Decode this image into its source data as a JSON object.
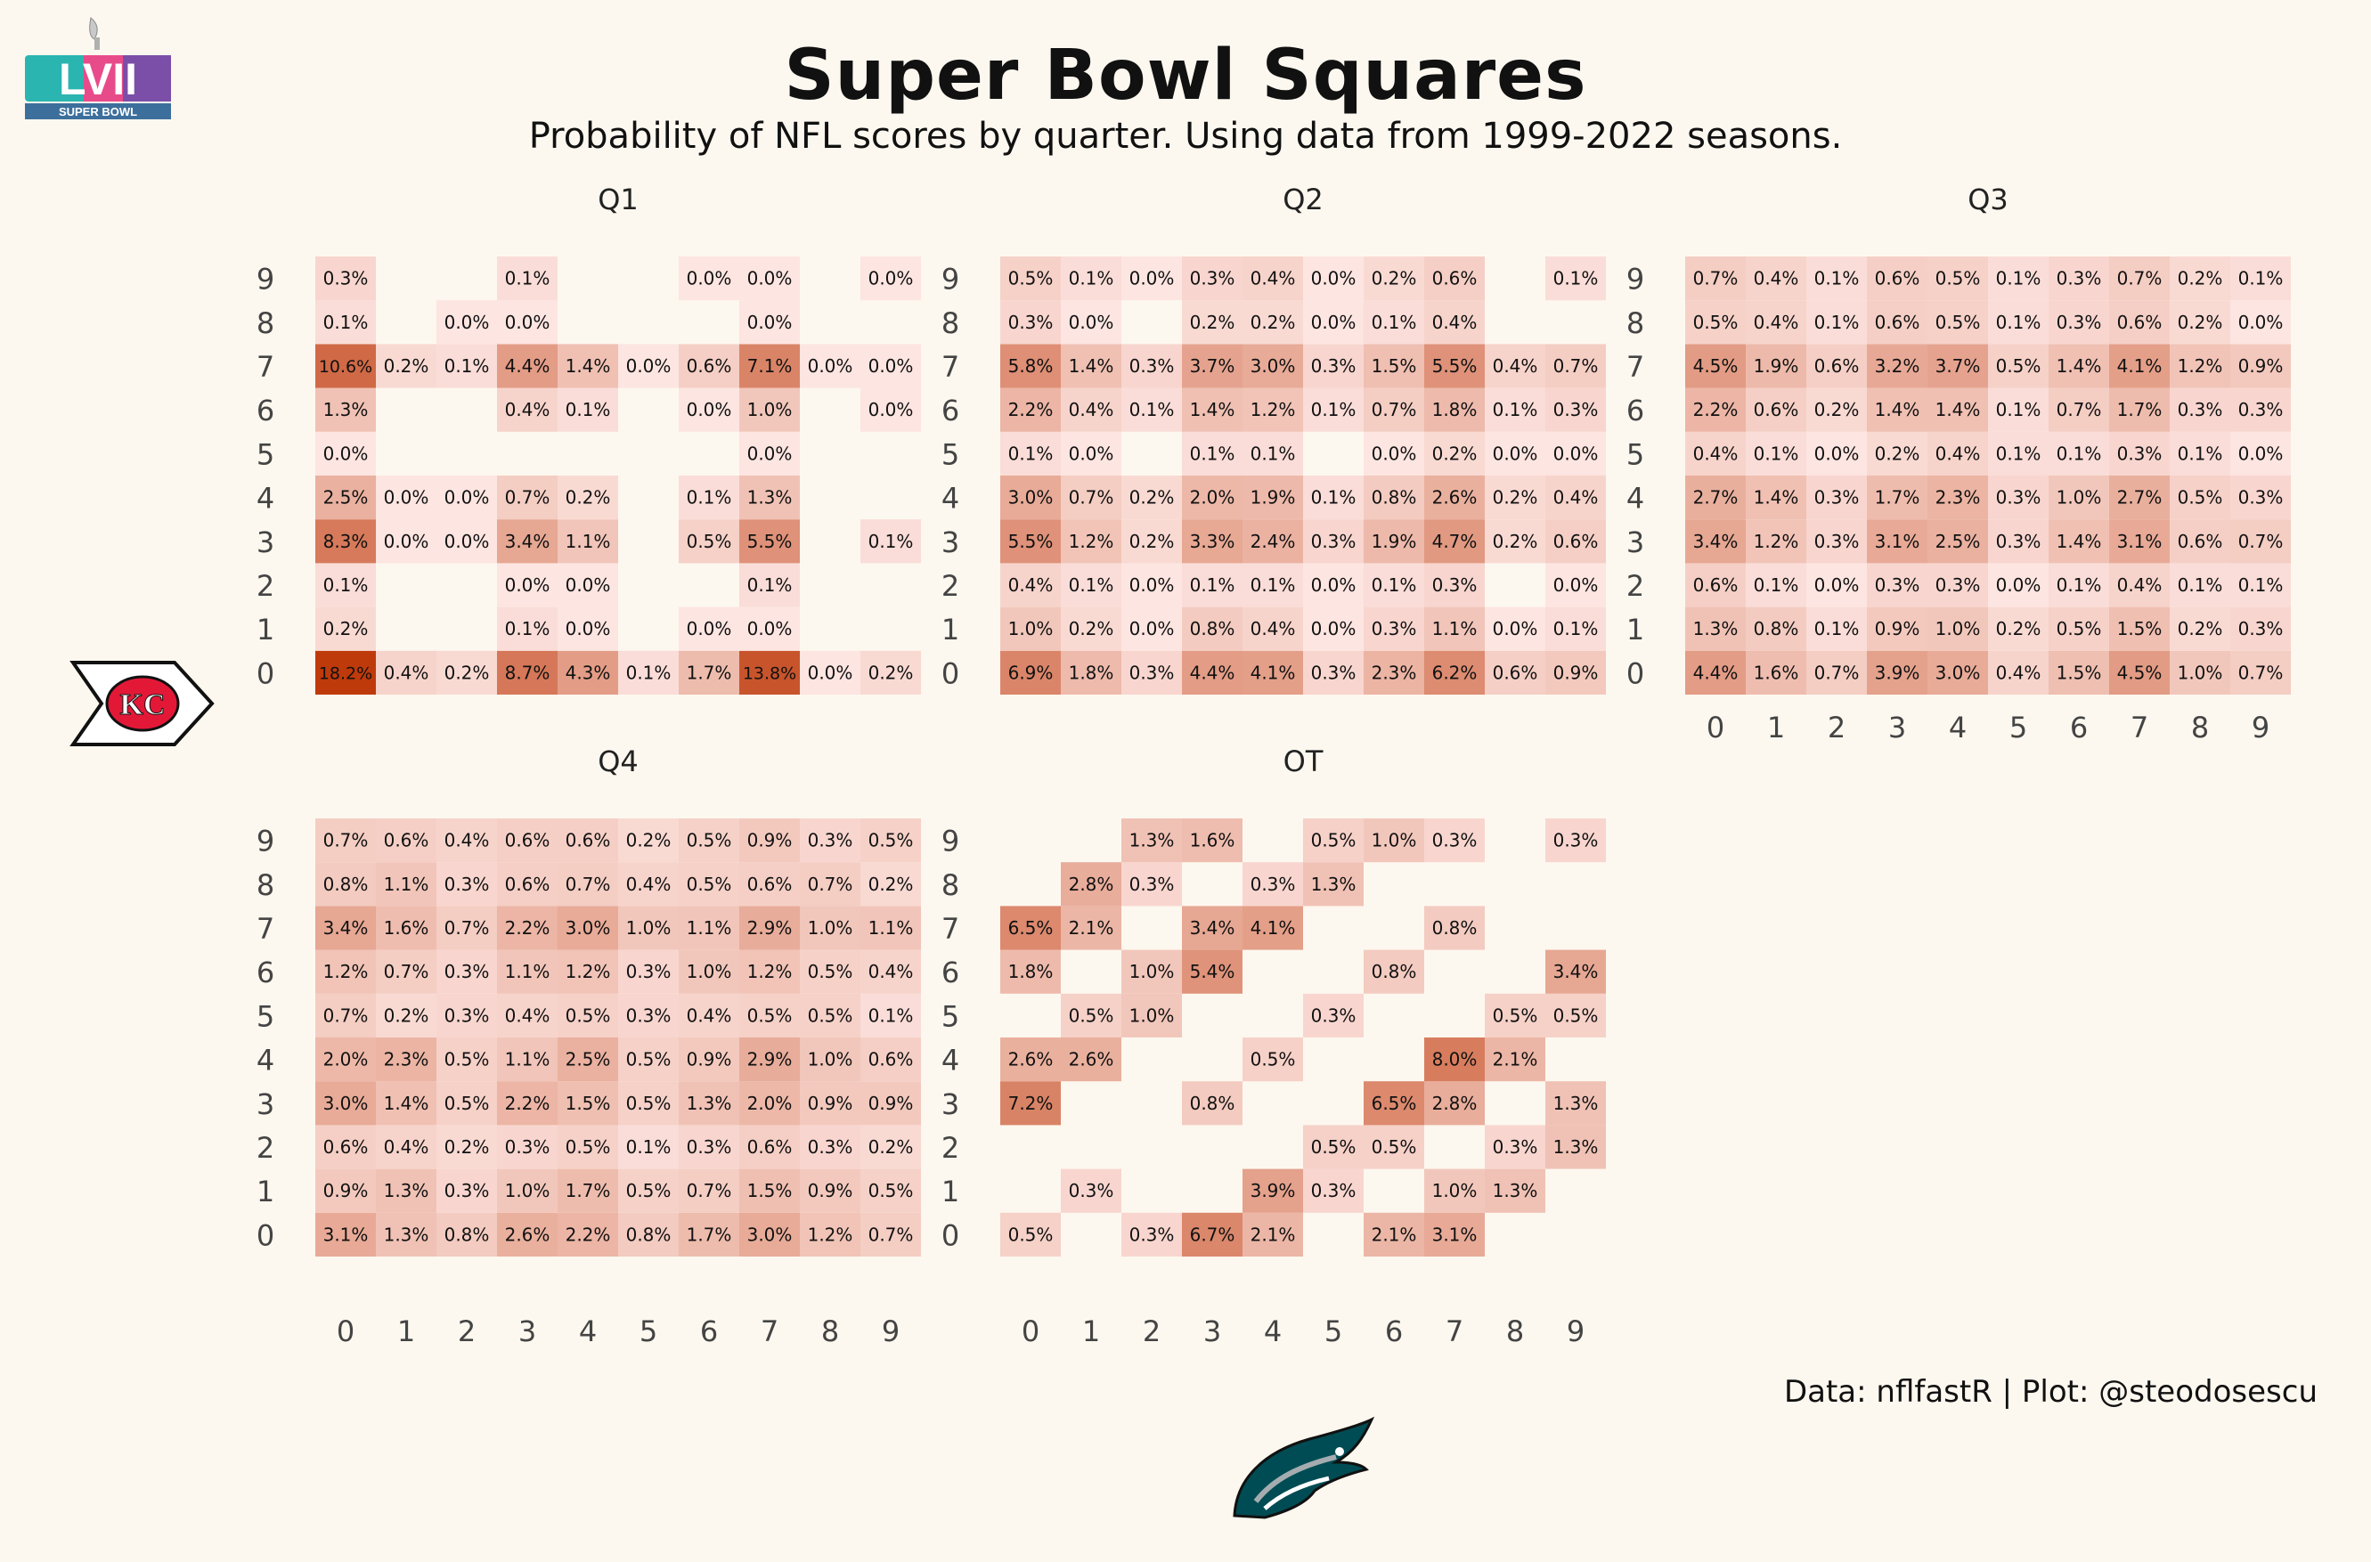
{
  "title": "Super Bowl Squares",
  "subtitle": "Probability of NFL scores by quarter. Using data from 1999-2022 seasons.",
  "caption": "Data: nflfastR | Plot: @steodosescu",
  "logos": {
    "super_bowl": {
      "text": "SUPER BOWL",
      "numeral": "LVII"
    },
    "chiefs": {
      "text": "KC"
    },
    "eagles": {
      "name": "eagles-logo"
    }
  },
  "colors": {
    "background": "#fdf8ef",
    "low": "#fde5e1",
    "high": "#bf3a0b",
    "chiefs_red": "#e31837",
    "chiefs_gold": "#ffb81c",
    "eagles_green": "#004c54",
    "lvii_teal": "#2bb5b0",
    "lvii_pink": "#e84b8a"
  },
  "chart_data": [
    {
      "type": "heatmap",
      "panel": "Q1",
      "x": [
        0,
        1,
        2,
        3,
        4,
        5,
        6,
        7,
        8,
        9
      ],
      "y": [
        0,
        1,
        2,
        3,
        4,
        5,
        6,
        7,
        8,
        9
      ],
      "rows": {
        "9": [
          "0.3%",
          "",
          "",
          "0.1%",
          "",
          "",
          "0.0%",
          "0.0%",
          "",
          "0.0%"
        ],
        "8": [
          "0.1%",
          "",
          "0.0%",
          "0.0%",
          "",
          "",
          "",
          "0.0%",
          "",
          ""
        ],
        "7": [
          "10.6%",
          "0.2%",
          "0.1%",
          "4.4%",
          "1.4%",
          "0.0%",
          "0.6%",
          "7.1%",
          "0.0%",
          "0.0%"
        ],
        "6": [
          "1.3%",
          "",
          "",
          "0.4%",
          "0.1%",
          "",
          "0.0%",
          "1.0%",
          "",
          "0.0%"
        ],
        "5": [
          "0.0%",
          "",
          "",
          "",
          "",
          "",
          "",
          "0.0%",
          "",
          ""
        ],
        "4": [
          "2.5%",
          "0.0%",
          "0.0%",
          "0.7%",
          "0.2%",
          "",
          "0.1%",
          "1.3%",
          "",
          ""
        ],
        "3": [
          "8.3%",
          "0.0%",
          "0.0%",
          "3.4%",
          "1.1%",
          "",
          "0.5%",
          "5.5%",
          "",
          "0.1%"
        ],
        "2": [
          "0.1%",
          "",
          "",
          "0.0%",
          "0.0%",
          "",
          "",
          "0.1%",
          "",
          ""
        ],
        "1": [
          "0.2%",
          "",
          "",
          "0.1%",
          "0.0%",
          "",
          "0.0%",
          "0.0%",
          "",
          ""
        ],
        "0": [
          "18.2%",
          "0.4%",
          "0.2%",
          "8.7%",
          "4.3%",
          "0.1%",
          "1.7%",
          "13.8%",
          "0.0%",
          "0.2%"
        ]
      }
    },
    {
      "type": "heatmap",
      "panel": "Q2",
      "x": [
        0,
        1,
        2,
        3,
        4,
        5,
        6,
        7,
        8,
        9
      ],
      "y": [
        0,
        1,
        2,
        3,
        4,
        5,
        6,
        7,
        8,
        9
      ],
      "rows": {
        "9": [
          "0.5%",
          "0.1%",
          "0.0%",
          "0.3%",
          "0.4%",
          "0.0%",
          "0.2%",
          "0.6%",
          "",
          "0.1%"
        ],
        "8": [
          "0.3%",
          "0.0%",
          "",
          "0.2%",
          "0.2%",
          "0.0%",
          "0.1%",
          "0.4%",
          "",
          ""
        ],
        "7": [
          "5.8%",
          "1.4%",
          "0.3%",
          "3.7%",
          "3.0%",
          "0.3%",
          "1.5%",
          "5.5%",
          "0.4%",
          "0.7%"
        ],
        "6": [
          "2.2%",
          "0.4%",
          "0.1%",
          "1.4%",
          "1.2%",
          "0.1%",
          "0.7%",
          "1.8%",
          "0.1%",
          "0.3%"
        ],
        "5": [
          "0.1%",
          "0.0%",
          "",
          "0.1%",
          "0.1%",
          "",
          "0.0%",
          "0.2%",
          "0.0%",
          "0.0%"
        ],
        "4": [
          "3.0%",
          "0.7%",
          "0.2%",
          "2.0%",
          "1.9%",
          "0.1%",
          "0.8%",
          "2.6%",
          "0.2%",
          "0.4%"
        ],
        "3": [
          "5.5%",
          "1.2%",
          "0.2%",
          "3.3%",
          "2.4%",
          "0.3%",
          "1.9%",
          "4.7%",
          "0.2%",
          "0.6%"
        ],
        "2": [
          "0.4%",
          "0.1%",
          "0.0%",
          "0.1%",
          "0.1%",
          "0.0%",
          "0.1%",
          "0.3%",
          "",
          "0.0%"
        ],
        "1": [
          "1.0%",
          "0.2%",
          "0.0%",
          "0.8%",
          "0.4%",
          "0.0%",
          "0.3%",
          "1.1%",
          "0.0%",
          "0.1%"
        ],
        "0": [
          "6.9%",
          "1.8%",
          "0.3%",
          "4.4%",
          "4.1%",
          "0.3%",
          "2.3%",
          "6.2%",
          "0.6%",
          "0.9%"
        ]
      }
    },
    {
      "type": "heatmap",
      "panel": "Q3",
      "x": [
        0,
        1,
        2,
        3,
        4,
        5,
        6,
        7,
        8,
        9
      ],
      "y": [
        0,
        1,
        2,
        3,
        4,
        5,
        6,
        7,
        8,
        9
      ],
      "rows": {
        "9": [
          "0.7%",
          "0.4%",
          "0.1%",
          "0.6%",
          "0.5%",
          "0.1%",
          "0.3%",
          "0.7%",
          "0.2%",
          "0.1%"
        ],
        "8": [
          "0.5%",
          "0.4%",
          "0.1%",
          "0.6%",
          "0.5%",
          "0.1%",
          "0.3%",
          "0.6%",
          "0.2%",
          "0.0%"
        ],
        "7": [
          "4.5%",
          "1.9%",
          "0.6%",
          "3.2%",
          "3.7%",
          "0.5%",
          "1.4%",
          "4.1%",
          "1.2%",
          "0.9%"
        ],
        "6": [
          "2.2%",
          "0.6%",
          "0.2%",
          "1.4%",
          "1.4%",
          "0.1%",
          "0.7%",
          "1.7%",
          "0.3%",
          "0.3%"
        ],
        "5": [
          "0.4%",
          "0.1%",
          "0.0%",
          "0.2%",
          "0.4%",
          "0.1%",
          "0.1%",
          "0.3%",
          "0.1%",
          "0.0%"
        ],
        "4": [
          "2.7%",
          "1.4%",
          "0.3%",
          "1.7%",
          "2.3%",
          "0.3%",
          "1.0%",
          "2.7%",
          "0.5%",
          "0.3%"
        ],
        "3": [
          "3.4%",
          "1.2%",
          "0.3%",
          "3.1%",
          "2.5%",
          "0.3%",
          "1.4%",
          "3.1%",
          "0.6%",
          "0.7%"
        ],
        "2": [
          "0.6%",
          "0.1%",
          "0.0%",
          "0.3%",
          "0.3%",
          "0.0%",
          "0.1%",
          "0.4%",
          "0.1%",
          "0.1%"
        ],
        "1": [
          "1.3%",
          "0.8%",
          "0.1%",
          "0.9%",
          "1.0%",
          "0.2%",
          "0.5%",
          "1.5%",
          "0.2%",
          "0.3%"
        ],
        "0": [
          "4.4%",
          "1.6%",
          "0.7%",
          "3.9%",
          "3.0%",
          "0.4%",
          "1.5%",
          "4.5%",
          "1.0%",
          "0.7%"
        ]
      }
    },
    {
      "type": "heatmap",
      "panel": "Q4",
      "x": [
        0,
        1,
        2,
        3,
        4,
        5,
        6,
        7,
        8,
        9
      ],
      "y": [
        0,
        1,
        2,
        3,
        4,
        5,
        6,
        7,
        8,
        9
      ],
      "rows": {
        "9": [
          "0.7%",
          "0.6%",
          "0.4%",
          "0.6%",
          "0.6%",
          "0.2%",
          "0.5%",
          "0.9%",
          "0.3%",
          "0.5%"
        ],
        "8": [
          "0.8%",
          "1.1%",
          "0.3%",
          "0.6%",
          "0.7%",
          "0.4%",
          "0.5%",
          "0.6%",
          "0.7%",
          "0.2%"
        ],
        "7": [
          "3.4%",
          "1.6%",
          "0.7%",
          "2.2%",
          "3.0%",
          "1.0%",
          "1.1%",
          "2.9%",
          "1.0%",
          "1.1%"
        ],
        "6": [
          "1.2%",
          "0.7%",
          "0.3%",
          "1.1%",
          "1.2%",
          "0.3%",
          "1.0%",
          "1.2%",
          "0.5%",
          "0.4%"
        ],
        "5": [
          "0.7%",
          "0.2%",
          "0.3%",
          "0.4%",
          "0.5%",
          "0.3%",
          "0.4%",
          "0.5%",
          "0.5%",
          "0.1%"
        ],
        "4": [
          "2.0%",
          "2.3%",
          "0.5%",
          "1.1%",
          "2.5%",
          "0.5%",
          "0.9%",
          "2.9%",
          "1.0%",
          "0.6%"
        ],
        "3": [
          "3.0%",
          "1.4%",
          "0.5%",
          "2.2%",
          "1.5%",
          "0.5%",
          "1.3%",
          "2.0%",
          "0.9%",
          "0.9%"
        ],
        "2": [
          "0.6%",
          "0.4%",
          "0.2%",
          "0.3%",
          "0.5%",
          "0.1%",
          "0.3%",
          "0.6%",
          "0.3%",
          "0.2%"
        ],
        "1": [
          "0.9%",
          "1.3%",
          "0.3%",
          "1.0%",
          "1.7%",
          "0.5%",
          "0.7%",
          "1.5%",
          "0.9%",
          "0.5%"
        ],
        "0": [
          "3.1%",
          "1.3%",
          "0.8%",
          "2.6%",
          "2.2%",
          "0.8%",
          "1.7%",
          "3.0%",
          "1.2%",
          "0.7%"
        ]
      }
    },
    {
      "type": "heatmap",
      "panel": "OT",
      "x": [
        0,
        1,
        2,
        3,
        4,
        5,
        6,
        7,
        8,
        9
      ],
      "y": [
        0,
        1,
        2,
        3,
        4,
        5,
        6,
        7,
        8,
        9
      ],
      "rows": {
        "9": [
          "",
          "",
          "1.3%",
          "1.6%",
          "",
          "0.5%",
          "1.0%",
          "0.3%",
          "",
          "0.3%"
        ],
        "8": [
          "",
          "2.8%",
          "0.3%",
          "",
          "0.3%",
          "1.3%",
          "",
          "",
          "",
          ""
        ],
        "7": [
          "6.5%",
          "2.1%",
          "",
          "3.4%",
          "4.1%",
          "",
          "",
          "0.8%",
          "",
          ""
        ],
        "6": [
          "1.8%",
          "",
          "1.0%",
          "5.4%",
          "",
          "",
          "0.8%",
          "",
          "",
          "3.4%"
        ],
        "5": [
          "",
          "0.5%",
          "1.0%",
          "",
          "",
          "0.3%",
          "",
          "",
          "0.5%",
          "0.5%"
        ],
        "4": [
          "2.6%",
          "2.6%",
          "",
          "",
          "0.5%",
          "",
          "",
          "8.0%",
          "2.1%",
          ""
        ],
        "3": [
          "7.2%",
          "",
          "",
          "0.8%",
          "",
          "",
          "6.5%",
          "2.8%",
          "",
          "1.3%"
        ],
        "2": [
          "",
          "",
          "",
          "",
          "",
          "0.5%",
          "0.5%",
          "",
          "0.3%",
          "1.3%"
        ],
        "1": [
          "",
          "0.3%",
          "",
          "",
          "3.9%",
          "0.3%",
          "",
          "1.0%",
          "1.3%",
          ""
        ],
        "0": [
          "0.5%",
          "",
          "0.3%",
          "6.7%",
          "2.1%",
          "",
          "2.1%",
          "3.1%",
          "",
          ""
        ]
      }
    }
  ]
}
